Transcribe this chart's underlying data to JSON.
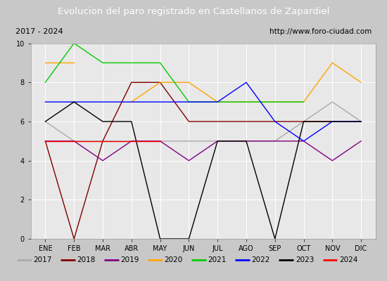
{
  "title": "Evolucion del paro registrado en Castellanos de Zapardiel",
  "subtitle_left": "2017 - 2024",
  "subtitle_right": "http://www.foro-ciudad.com",
  "months": [
    "ENE",
    "FEB",
    "MAR",
    "ABR",
    "MAY",
    "JUN",
    "JUL",
    "AGO",
    "SEP",
    "OCT",
    "NOV",
    "DIC"
  ],
  "ylim": [
    0,
    10
  ],
  "yticks": [
    0,
    2,
    4,
    6,
    8,
    10
  ],
  "series": {
    "2017": {
      "color": "#aaaaaa",
      "data": [
        6,
        5,
        5,
        5,
        5,
        5,
        5,
        5,
        5,
        6,
        7,
        6
      ]
    },
    "2018": {
      "color": "#800000",
      "data": [
        5,
        0,
        5,
        8,
        8,
        6,
        6,
        6,
        6,
        6,
        6,
        6
      ]
    },
    "2019": {
      "color": "#800080",
      "data": [
        5,
        5,
        4,
        5,
        5,
        4,
        5,
        5,
        5,
        5,
        4,
        5
      ]
    },
    "2020": {
      "color": "#ffa500",
      "data": [
        9,
        9,
        null,
        7,
        8,
        8,
        7,
        7,
        7,
        7,
        9,
        8
      ]
    },
    "2021": {
      "color": "#00cc00",
      "data": [
        8,
        10,
        9,
        9,
        9,
        7,
        7,
        7,
        7,
        7,
        null,
        null
      ]
    },
    "2022": {
      "color": "#0000ff",
      "data": [
        7,
        7,
        7,
        7,
        7,
        7,
        7,
        8,
        6,
        5,
        6,
        6
      ]
    },
    "2023": {
      "color": "#000000",
      "data": [
        6,
        7,
        6,
        6,
        0,
        0,
        5,
        5,
        0,
        6,
        6,
        6
      ]
    },
    "2024": {
      "color": "#ff0000",
      "data": [
        5,
        5,
        5,
        5,
        5,
        null,
        null,
        null,
        null,
        null,
        null,
        null
      ]
    }
  },
  "title_bg": "#4472c4",
  "title_color": "#ffffff",
  "subtitle_bg": "#e0e0e0",
  "plot_bg": "#e8e8e8",
  "legend_bg": "#f0f0f0",
  "outer_bg": "#c8c8c8"
}
